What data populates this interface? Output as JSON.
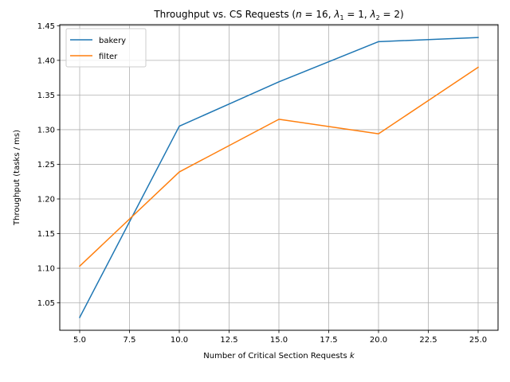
{
  "chart_data": {
    "type": "line",
    "title": {
      "main": "Throughput vs. CS Requests (",
      "n_sym": "n",
      "n_eq": " = 16, ",
      "l1_sym": "λ",
      "l1_sub": "1",
      "l1_eq": " = 1, ",
      "l2_sym": "λ",
      "l2_sub": "2",
      "l2_eq": " = 2)"
    },
    "xlabel": {
      "text": "Number of Critical Section Requests ",
      "var": "k"
    },
    "ylabel": "Throughput (tasks / ms)",
    "x": [
      5,
      10,
      15,
      20,
      25
    ],
    "series": [
      {
        "name": "bakery",
        "color": "#1f77b4",
        "values": [
          1.029,
          1.305,
          1.369,
          1.427,
          1.433
        ]
      },
      {
        "name": "filter",
        "color": "#ff7f0e",
        "values": [
          1.103,
          1.239,
          1.315,
          1.294,
          1.39
        ]
      }
    ],
    "xlim": [
      4.0,
      26.0
    ],
    "ylim": [
      1.0105,
      1.4515
    ],
    "xticks": [
      5.0,
      7.5,
      10.0,
      12.5,
      15.0,
      17.5,
      20.0,
      22.5,
      25.0
    ],
    "xtick_labels": [
      "5.0",
      "7.5",
      "10.0",
      "12.5",
      "15.0",
      "17.5",
      "20.0",
      "22.5",
      "25.0"
    ],
    "yticks": [
      1.05,
      1.1,
      1.15,
      1.2,
      1.25,
      1.3,
      1.35,
      1.4,
      1.45
    ],
    "ytick_labels": [
      "1.05",
      "1.10",
      "1.15",
      "1.20",
      "1.25",
      "1.30",
      "1.35",
      "1.40",
      "1.45"
    ],
    "grid": true,
    "legend_position": "top-left"
  }
}
